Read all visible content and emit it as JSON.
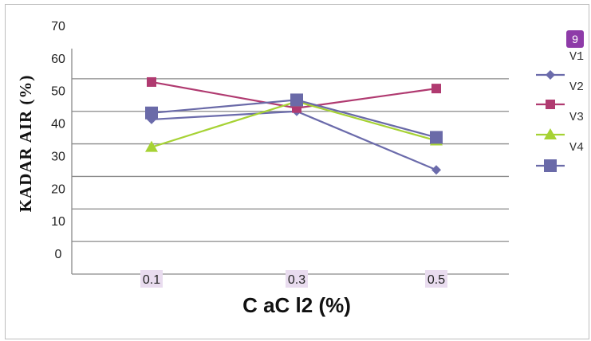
{
  "chart_data": {
    "type": "line",
    "xlabel": "C aC l2 (%)",
    "ylabel": "KADAR  AIR (%)",
    "categories": [
      "0.1",
      "0.3",
      "0.5"
    ],
    "ylim": [
      0,
      70
    ],
    "yticks": [
      0,
      10,
      20,
      30,
      40,
      50,
      60,
      70
    ],
    "grid": true,
    "legend_position": "right",
    "page_badge": "9",
    "series": [
      {
        "name": "V1",
        "values": [
          47.5,
          50,
          32
        ],
        "color": "#6b6bab",
        "marker": "diamond"
      },
      {
        "name": "V2",
        "values": [
          59,
          51,
          57
        ],
        "color": "#b03a70",
        "marker": "square"
      },
      {
        "name": "V3",
        "values": [
          39,
          53,
          41
        ],
        "color": "#a6d234",
        "marker": "triangle"
      },
      {
        "name": "V4",
        "values": [
          49.5,
          53.5,
          42
        ],
        "color": "#6a6aa8",
        "marker": "bigsquare"
      }
    ]
  }
}
